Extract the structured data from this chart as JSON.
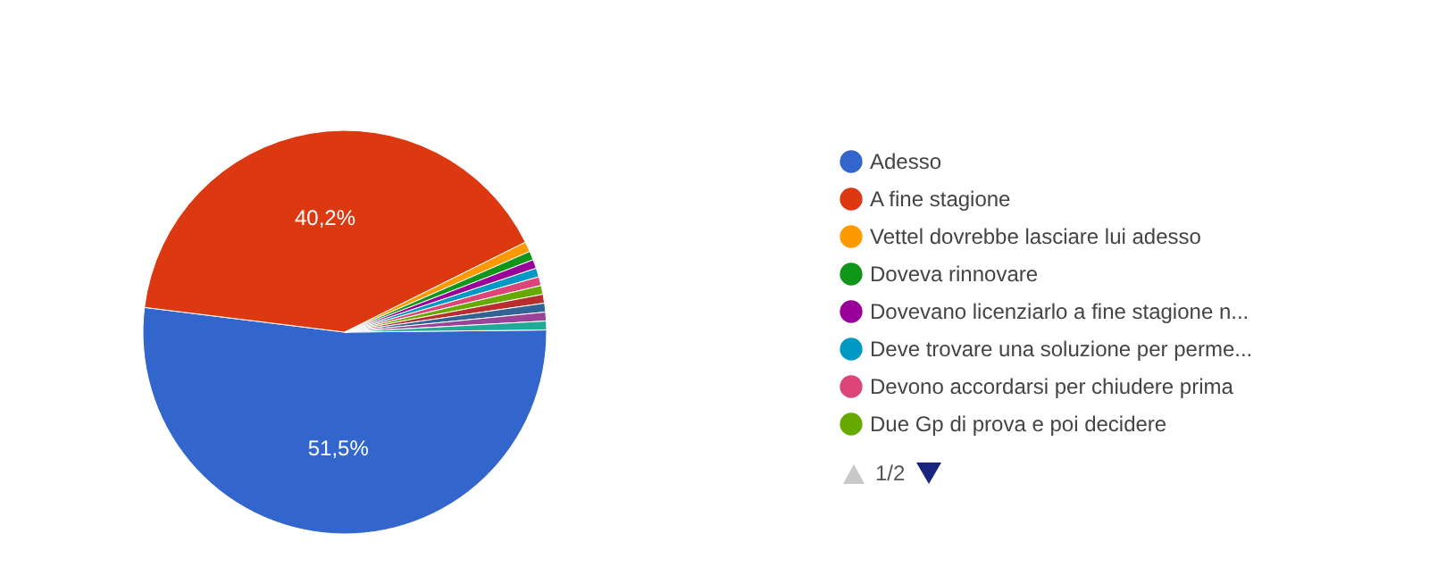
{
  "chart_data": {
    "type": "pie",
    "categories": [
      "Adesso",
      "A fine stagione",
      "Vettel dovrebbe lasciare lui adesso",
      "Doveva rinnovare",
      "Dovevano licenziarlo a fine stagione n...",
      "Deve trovare una soluzione per perme...",
      "Devono accordarsi per chiudere prima",
      "Due Gp di prova e poi decidere",
      null,
      null,
      null,
      null
    ],
    "values": [
      51.5,
      40.2,
      0.8,
      0.7,
      0.7,
      0.7,
      0.7,
      0.7,
      0.7,
      0.7,
      0.7,
      0.7
    ],
    "colors": [
      "#3366cc",
      "#dc3912",
      "#ff9900",
      "#109618",
      "#990099",
      "#0099c6",
      "#dd4477",
      "#66aa00",
      "#b82e2e",
      "#316395",
      "#994499",
      "#22aa99"
    ],
    "value_labels": [
      "51,5%",
      "40,2%",
      null,
      null,
      null,
      null,
      null,
      null,
      null,
      null,
      null,
      null
    ],
    "legend": "right",
    "annotations": [
      "1/2"
    ]
  }
}
